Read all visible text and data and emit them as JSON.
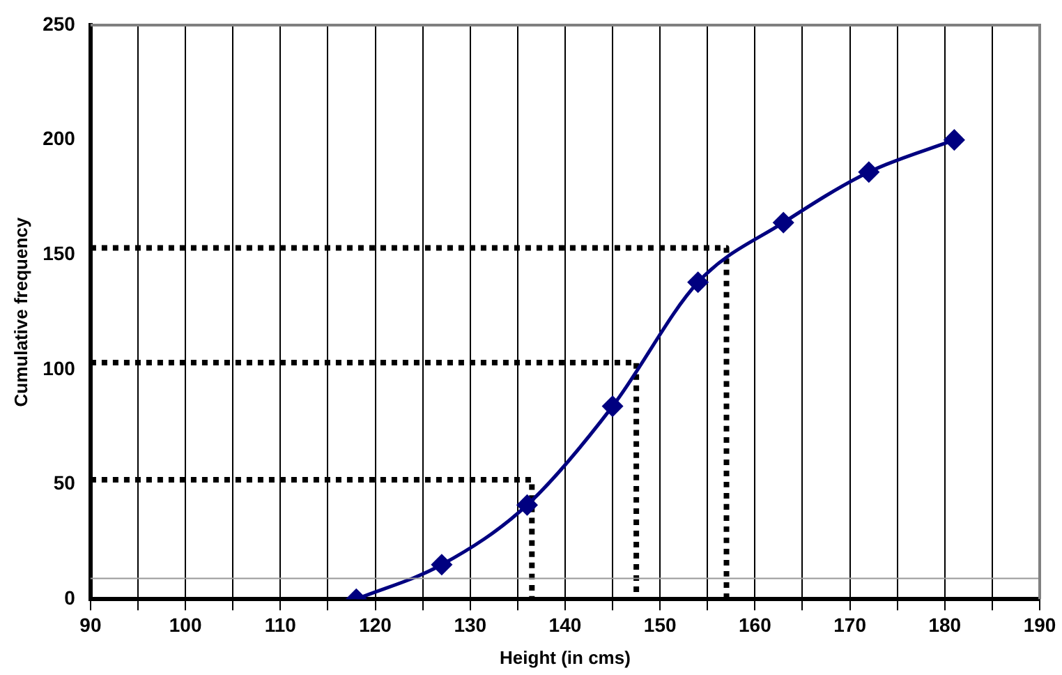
{
  "chart_data": {
    "type": "line",
    "xlabel": "Height (in cms)",
    "ylabel": "Cumulative frequency",
    "xlim": [
      90,
      190
    ],
    "ylim": [
      0,
      250
    ],
    "xticks": [
      90,
      {
        "value": 95,
        "label": null
      },
      100,
      {
        "value": 105,
        "label": null
      },
      110,
      {
        "value": 115,
        "label": null
      },
      120,
      {
        "value": 125,
        "label": null
      },
      130,
      {
        "value": 135,
        "label": null
      },
      140,
      {
        "value": 145,
        "label": null
      },
      150,
      {
        "value": 155,
        "label": null
      },
      160,
      {
        "value": 165,
        "label": null
      },
      170,
      {
        "value": 175,
        "label": null
      },
      180,
      {
        "value": 185,
        "label": null
      },
      190
    ],
    "yticks": [
      0,
      50,
      100,
      150,
      200,
      250
    ],
    "grid": "x",
    "legend": false,
    "ref_lines": [
      {
        "axis": "y",
        "value": 9,
        "color": "#999999"
      }
    ],
    "series": [
      {
        "x": [
          118,
          127,
          136,
          145,
          154,
          163,
          172,
          181
        ],
        "values": [
          0,
          15,
          41,
          84,
          138,
          164,
          186,
          200
        ],
        "color": "#000080",
        "marker": "diamond",
        "line_style": "solid"
      },
      {
        "x": [
          90,
          136.5,
          136.5
        ],
        "values": [
          52,
          52,
          0
        ],
        "color": "#000000",
        "marker": "none",
        "line_style": "dotted"
      },
      {
        "x": [
          90,
          147.5,
          147.5
        ],
        "values": [
          103,
          103,
          0
        ],
        "color": "#000000",
        "marker": "none",
        "line_style": "dotted"
      },
      {
        "x": [
          90,
          157,
          157
        ],
        "values": [
          153,
          153,
          0
        ],
        "color": "#000000",
        "marker": "none",
        "line_style": "dotted"
      }
    ]
  }
}
